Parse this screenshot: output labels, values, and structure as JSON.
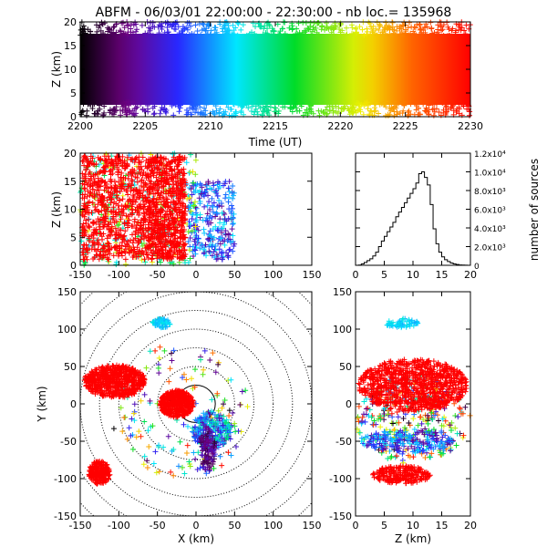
{
  "title": "ABFM - 06/03/01 22:00:00 - 22:30:00 - nb loc.= 135968",
  "chart_data": [
    {
      "type": "scatter",
      "panel": "time-altitude",
      "xlabel": "Time (UT)",
      "ylabel": "Z (km)",
      "xlim": [
        2200,
        2230
      ],
      "ylim": [
        0,
        20
      ],
      "xticks": [
        "2200",
        "2205",
        "2210",
        "2215",
        "2220",
        "2225",
        "2230"
      ],
      "yticks": [
        "0",
        "5",
        "10",
        "15",
        "20"
      ],
      "colormap": "time: black → purple → blue → cyan → green → yellow → red",
      "description_points": "continuous band of sources 0-20 km, densest 2-18 km"
    },
    {
      "type": "scatter",
      "panel": "x-altitude",
      "xlabel": "",
      "ylabel": "Z (km)",
      "xlim": [
        -150,
        150
      ],
      "ylim": [
        0,
        20
      ],
      "xticks": [
        "-150",
        "-100",
        "-50",
        "0",
        "50",
        "100",
        "150"
      ],
      "yticks": [
        "0",
        "5",
        "10",
        "15",
        "20"
      ],
      "clusters": [
        {
          "x": [
            -148,
            -62
          ],
          "z": [
            1,
            19
          ],
          "color": "#ff0000"
        },
        {
          "x": [
            -62,
            -12
          ],
          "z": [
            1,
            20
          ],
          "color": "#ff0000"
        },
        {
          "x": [
            -12,
            52
          ],
          "z": [
            0,
            17
          ],
          "color": "#0040ff"
        }
      ]
    },
    {
      "type": "bar",
      "panel": "altitude-histogram",
      "xlabel": "",
      "ylabel": "number of sources",
      "xlim": [
        0,
        20
      ],
      "ylim": [
        0,
        12000
      ],
      "xticks": [
        "0",
        "5",
        "10",
        "15",
        "20"
      ],
      "yticks": [
        "0",
        "2.0x10³",
        "4.0x10³",
        "6.0x10³",
        "8.0x10³",
        "1.0x10⁴",
        "1.2x10⁴"
      ],
      "bin_width_km": 0.5,
      "x": [
        0,
        0.5,
        1,
        1.5,
        2,
        2.5,
        3,
        3.5,
        4,
        4.5,
        5,
        5.5,
        6,
        6.5,
        7,
        7.5,
        8,
        8.5,
        9,
        9.5,
        10,
        10.5,
        11,
        11.5,
        12,
        12.5,
        13,
        13.5,
        14,
        14.5,
        15,
        15.5,
        16,
        16.5,
        17,
        17.5,
        18,
        18.5,
        19,
        19.5
      ],
      "values": [
        0,
        30,
        150,
        300,
        500,
        700,
        1000,
        1400,
        2000,
        2600,
        3100,
        3600,
        4100,
        4600,
        5200,
        5700,
        6200,
        6700,
        7200,
        7700,
        8200,
        8800,
        9800,
        10000,
        9400,
        8600,
        6500,
        3900,
        2300,
        1400,
        900,
        600,
        400,
        250,
        150,
        80,
        40,
        20,
        10,
        0
      ]
    },
    {
      "type": "scatter",
      "panel": "plan-view",
      "xlabel": "X (km)",
      "ylabel": "Y (km)",
      "xlim": [
        -150,
        150
      ],
      "ylim": [
        -150,
        150
      ],
      "xticks": [
        "-150",
        "-100",
        "-50",
        "0",
        "50",
        "100",
        "150"
      ],
      "yticks": [
        "-150",
        "-100",
        "-50",
        "0",
        "50",
        "100",
        "150"
      ],
      "range_rings_km": [
        25,
        50,
        75,
        100,
        125,
        150,
        175,
        200
      ],
      "clusters": [
        {
          "cx": -98,
          "cy": 25,
          "color": "#ff0000"
        },
        {
          "cx": -25,
          "cy": -5,
          "color": "#ff0000"
        },
        {
          "cx": 20,
          "cy": -40,
          "color": "#0040ff"
        },
        {
          "cx": -125,
          "cy": -90,
          "color": "#ff0000"
        },
        {
          "cx": -45,
          "cy": 110,
          "color": "#00ddff"
        }
      ]
    },
    {
      "type": "scatter",
      "panel": "altitude-y",
      "xlabel": "Z (km)",
      "ylabel": "",
      "xlim": [
        0,
        20
      ],
      "ylim": [
        -150,
        150
      ],
      "xticks": [
        "0",
        "5",
        "10",
        "15",
        "20"
      ],
      "yticks": [
        "-150",
        "-100",
        "-50",
        "0",
        "50",
        "100",
        "150"
      ]
    }
  ]
}
